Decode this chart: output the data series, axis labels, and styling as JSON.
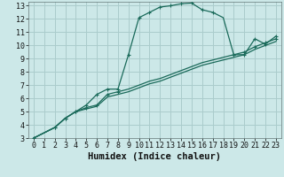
{
  "title": "",
  "xlabel": "Humidex (Indice chaleur)",
  "ylabel": "",
  "bg_color": "#cce8e8",
  "grid_color": "#aacccc",
  "line_color": "#1a6a5a",
  "xlim": [
    -0.5,
    23.5
  ],
  "ylim": [
    3,
    13.3
  ],
  "xticks": [
    0,
    1,
    2,
    3,
    4,
    5,
    6,
    7,
    8,
    9,
    10,
    11,
    12,
    13,
    14,
    15,
    16,
    17,
    18,
    19,
    20,
    21,
    22,
    23
  ],
  "yticks": [
    3,
    4,
    5,
    6,
    7,
    8,
    9,
    10,
    11,
    12,
    13
  ],
  "curve1_x": [
    0,
    2,
    3,
    4,
    5,
    6,
    7,
    8,
    9,
    10,
    11,
    12,
    13,
    14,
    15,
    16,
    17,
    18,
    19,
    20,
    21,
    22,
    23
  ],
  "curve1_y": [
    3.0,
    3.8,
    4.5,
    5.0,
    5.5,
    6.3,
    6.7,
    6.7,
    9.3,
    12.1,
    12.5,
    12.9,
    13.0,
    13.15,
    13.2,
    12.7,
    12.5,
    12.1,
    9.3,
    9.3,
    10.5,
    10.1,
    10.7
  ],
  "curve1_markers_x": [
    0,
    2,
    3,
    4,
    5,
    6,
    7,
    8,
    9,
    10,
    11,
    12,
    13,
    14,
    15,
    16,
    17,
    19,
    20,
    21,
    22,
    23
  ],
  "curve1_markers_y": [
    3.0,
    3.8,
    4.5,
    5.0,
    5.5,
    6.3,
    6.7,
    6.7,
    9.3,
    12.1,
    12.5,
    12.9,
    13.0,
    13.15,
    13.2,
    12.7,
    12.5,
    9.3,
    9.3,
    10.5,
    10.1,
    10.7
  ],
  "curve2_x": [
    0,
    2,
    3,
    4,
    5,
    6,
    7,
    8,
    9,
    10,
    11,
    12,
    13,
    14,
    15,
    16,
    17,
    18,
    19,
    20,
    21,
    22,
    23
  ],
  "curve2_y": [
    3.0,
    3.8,
    4.5,
    5.0,
    5.3,
    5.5,
    6.3,
    6.5,
    6.7,
    7.0,
    7.3,
    7.5,
    7.8,
    8.1,
    8.4,
    8.7,
    8.9,
    9.1,
    9.3,
    9.5,
    9.9,
    10.2,
    10.5
  ],
  "curve2_markers_x": [
    2,
    3,
    4,
    5,
    6,
    7,
    8,
    19,
    20,
    21,
    22,
    23
  ],
  "curve2_markers_y": [
    3.8,
    4.5,
    5.0,
    5.3,
    5.5,
    6.3,
    6.5,
    9.3,
    9.5,
    9.9,
    10.2,
    10.5
  ],
  "curve3_x": [
    0,
    2,
    3,
    4,
    5,
    6,
    7,
    8,
    9,
    10,
    11,
    12,
    13,
    14,
    15,
    16,
    17,
    18,
    19,
    20,
    21,
    22,
    23
  ],
  "curve3_y": [
    3.0,
    3.8,
    4.5,
    5.0,
    5.2,
    5.4,
    6.1,
    6.3,
    6.5,
    6.8,
    7.1,
    7.3,
    7.6,
    7.9,
    8.2,
    8.5,
    8.7,
    8.9,
    9.1,
    9.3,
    9.7,
    10.0,
    10.3
  ],
  "tick_fontsize": 6,
  "label_fontsize": 7.5
}
